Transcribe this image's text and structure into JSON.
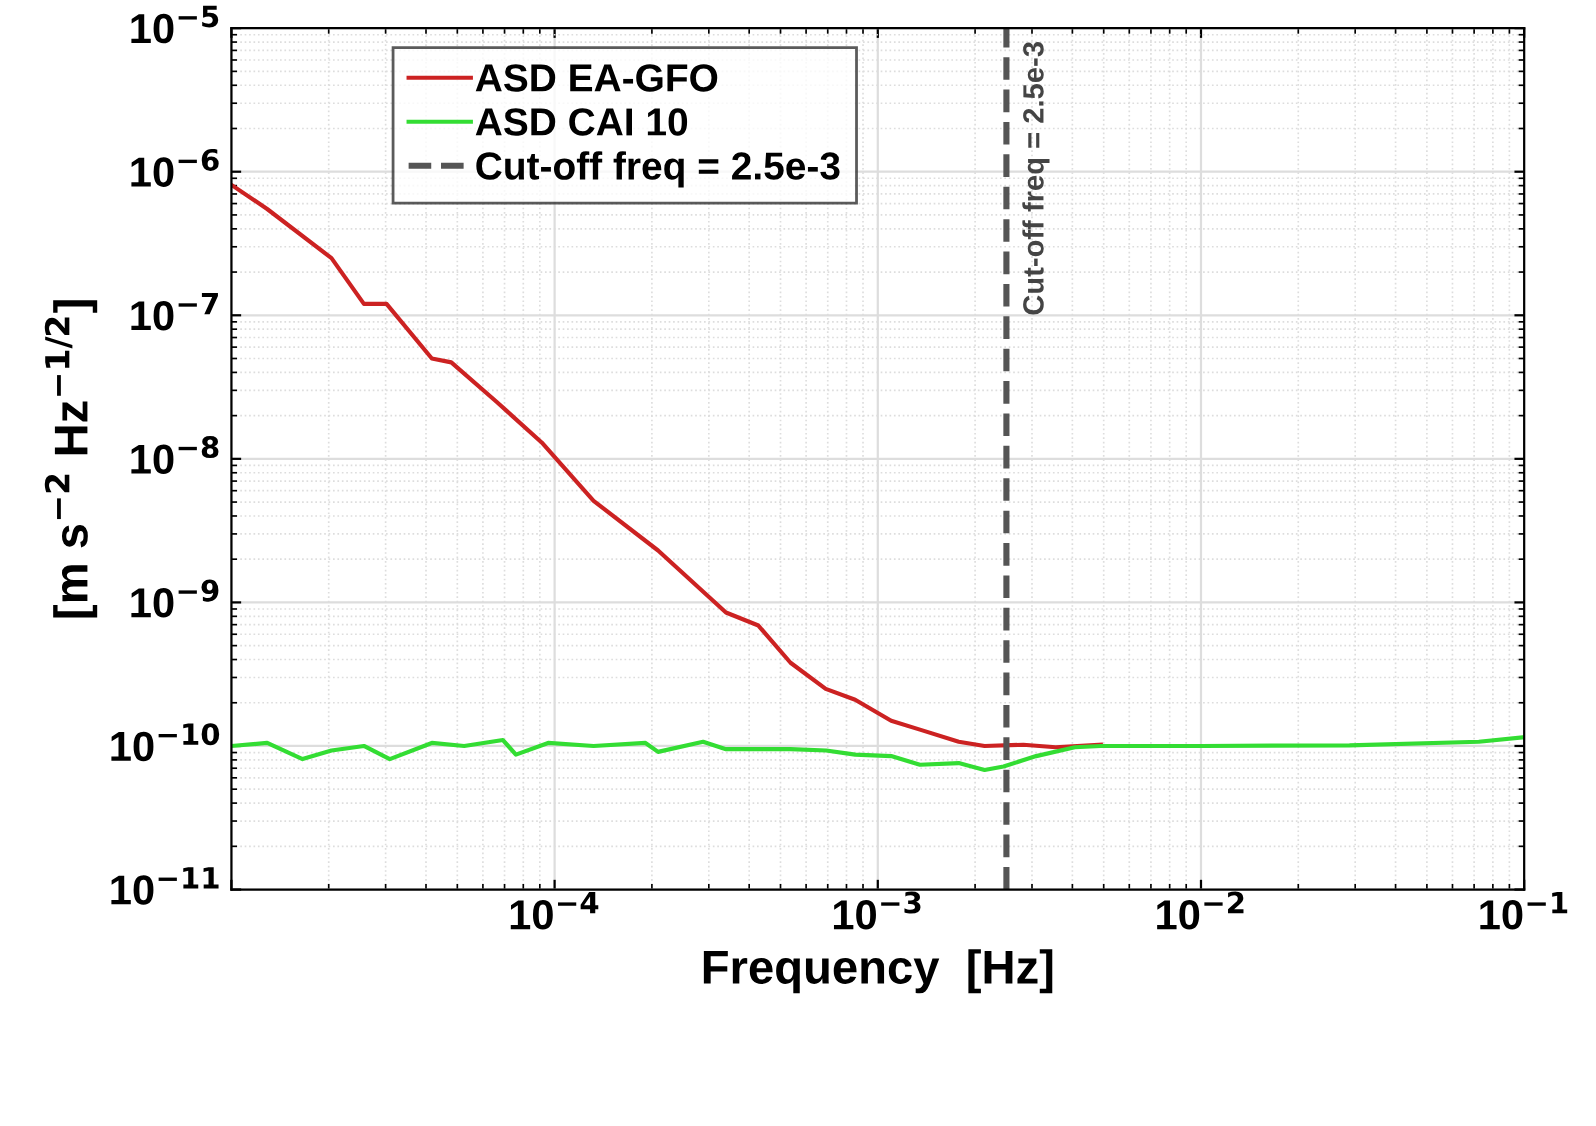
{
  "chart_data": {
    "type": "line",
    "xlabel": "Frequency  [Hz]",
    "ylabel": "[m s$^{−2}$ Hz$^{−1/2}$]",
    "log": "xy",
    "grid": true,
    "legend": "top left",
    "line_style": "solid",
    "marker": "none",
    "xlim": [
      1e-05,
      0.1
    ],
    "ylim": [
      1e-11,
      1e-05
    ],
    "xticks": [
      {
        "value": 1e-05,
        "label": null
      },
      {
        "value": 0.0001,
        "label": "10$^{−4}$"
      },
      {
        "value": 0.001,
        "label": "10$^{−3}$"
      },
      {
        "value": 0.01,
        "label": "10$^{−2}$"
      },
      {
        "value": 0.1,
        "label": "10$^{−1}$"
      }
    ],
    "yticks": [
      {
        "value": 1e-11,
        "label": "10$^{−11}$"
      },
      {
        "value": 1e-10,
        "label": "10$^{−10}$"
      },
      {
        "value": 1e-09,
        "label": "10$^{−9}$"
      },
      {
        "value": 1e-08,
        "label": "10$^{−8}$"
      },
      {
        "value": 1e-07,
        "label": "10$^{−7}$"
      },
      {
        "value": 1e-06,
        "label": "10$^{−6}$"
      },
      {
        "value": 1e-05,
        "label": "10$^{−5}$"
      }
    ],
    "series": [
      {
        "name": "ASD EA-GFO",
        "color": "#cc2222",
        "x": [
          1e-05,
          1.29e-05,
          2.04e-05,
          2.57e-05,
          3.02e-05,
          4.17e-05,
          4.79e-05,
          6.61e-05,
          9.12e-05,
          0.000132,
          0.000209,
          0.000339,
          0.000427,
          0.000537,
          0.00069,
          0.000851,
          0.0011,
          0.00135,
          0.00178,
          0.00214,
          0.00282,
          0.00355,
          0.0049
        ],
        "values": [
          8.1e-07,
          5.5e-07,
          2.5e-07,
          1.2e-07,
          1.2e-07,
          5e-08,
          4.7e-08,
          2.5e-08,
          1.3e-08,
          5.1e-09,
          2.3e-09,
          8.5e-10,
          6.9e-10,
          3.8e-10,
          2.5e-10,
          2.1e-10,
          1.5e-10,
          1.3e-10,
          1.07e-10,
          1e-10,
          1.02e-10,
          9.8e-11,
          1.02e-10
        ]
      },
      {
        "name": "ASD CAI 10",
        "color": "#33dd33",
        "x": [
          1e-05,
          1.29e-05,
          1.66e-05,
          2.04e-05,
          2.57e-05,
          3.09e-05,
          4.17e-05,
          5.25e-05,
          6.92e-05,
          7.59e-05,
          9.55e-05,
          0.000132,
          0.000191,
          0.000209,
          0.000288,
          0.000339,
          0.000537,
          0.000692,
          0.000851,
          0.0011,
          0.00135,
          0.00178,
          0.00214,
          0.00245,
          0.00309,
          0.00407,
          0.0049,
          0.01,
          0.0288,
          0.0724,
          0.1
        ],
        "values": [
          1e-10,
          1.05e-10,
          8.1e-11,
          9.3e-11,
          1e-10,
          8.1e-11,
          1.05e-10,
          1e-10,
          1.1e-10,
          8.7e-11,
          1.05e-10,
          1e-10,
          1.05e-10,
          9.1e-11,
          1.07e-10,
          9.5e-11,
          9.5e-11,
          9.3e-11,
          8.7e-11,
          8.5e-11,
          7.4e-11,
          7.6e-11,
          6.8e-11,
          7.2e-11,
          8.5e-11,
          9.8e-11,
          1e-10,
          1e-10,
          1.01e-10,
          1.07e-10,
          1.15e-10
        ]
      }
    ],
    "ref_lines": [
      {
        "axis": "x",
        "value": 0.0025,
        "label": "Cut-off freq = 2.5e-3",
        "color": "#555555",
        "line_style": "dashed"
      }
    ]
  }
}
